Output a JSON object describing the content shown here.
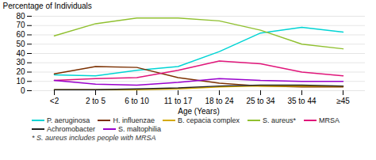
{
  "chart_data": {
    "type": "line",
    "xlabel": "Age (Years)",
    "ylabel": "Percentage of Individuals",
    "categories": [
      "<2",
      "2 to 5",
      "6 to 10",
      "11 to 17",
      "18 to 24",
      "25 to 34",
      "35 to 44",
      "≥45"
    ],
    "series": [
      {
        "name": "P. aeruginosa",
        "color": "#00d4d4",
        "values": [
          17,
          16,
          22,
          26,
          42,
          62,
          68,
          63
        ]
      },
      {
        "name": "H. influenzae",
        "color": "#7B3000",
        "values": [
          18,
          26,
          25,
          14,
          8,
          5,
          4,
          4
        ]
      },
      {
        "name": "B. cepacia complex",
        "color": "#d4aa00",
        "values": [
          1,
          1,
          1,
          2,
          4,
          5,
          5,
          5
        ]
      },
      {
        "name": "S. aureus*",
        "color": "#90c030",
        "values": [
          59,
          72,
          78,
          78,
          75,
          65,
          50,
          45
        ]
      },
      {
        "name": "MRSA",
        "color": "#e0157a",
        "values": [
          11,
          13,
          14,
          22,
          32,
          29,
          20,
          16
        ]
      },
      {
        "name": "Achromobacter",
        "color": "#222222",
        "values": [
          1,
          1,
          2,
          3,
          5,
          6,
          6,
          5
        ]
      },
      {
        "name": "S. maltophilia",
        "color": "#9900cc",
        "values": [
          11,
          7,
          6,
          9,
          13,
          11,
          10,
          10
        ]
      }
    ],
    "ylim": [
      0,
      80
    ],
    "yticks": [
      0,
      10,
      20,
      30,
      40,
      50,
      60,
      70,
      80
    ],
    "grid": true,
    "legend": "bottom",
    "annotations": [
      "* S. aureus includes people with MRSA"
    ]
  }
}
